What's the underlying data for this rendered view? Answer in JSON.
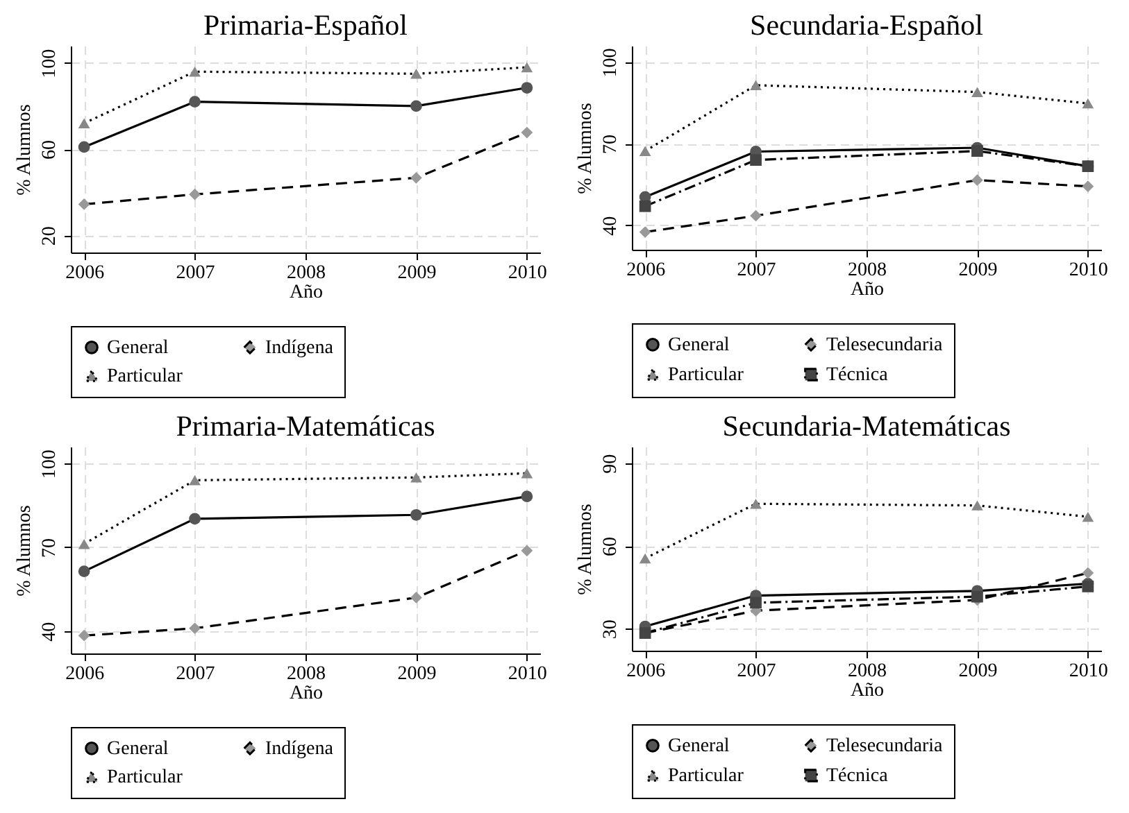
{
  "chart_data": [
    {
      "type": "line",
      "title": "Primaria-Español",
      "xlabel": "Año",
      "ylabel": "% Alumnos",
      "x": [
        2006,
        2007,
        2009,
        2010
      ],
      "xlim": [
        2005.88,
        2010.12
      ],
      "xticks": [
        2006,
        2007,
        2008,
        2009,
        2010
      ],
      "ylim": [
        12,
        108
      ],
      "yticks": [
        20,
        60,
        100
      ],
      "grid": true,
      "legend": "bottom",
      "series": [
        {
          "name": "General",
          "color": "#555555",
          "marker": "circle",
          "line_style": "solid",
          "values": [
            61,
            82,
            80,
            88.5
          ]
        },
        {
          "name": "Indígena",
          "color": "#999999",
          "marker": "diamond",
          "line_style": "dashed",
          "values": [
            34.4,
            39,
            46.7,
            67.7
          ]
        },
        {
          "name": "Particular",
          "color": "#888888",
          "marker": "triangle",
          "line_style": "dotted",
          "values": [
            72,
            96,
            95,
            98
          ]
        }
      ]
    },
    {
      "type": "line",
      "title": "Secundaria-Español",
      "xlabel": "Año",
      "ylabel": "% Alumnos",
      "x": [
        2006,
        2007,
        2009,
        2010
      ],
      "xlim": [
        2005.88,
        2010.12
      ],
      "xticks": [
        2006,
        2007,
        2008,
        2009,
        2010
      ],
      "ylim": [
        31,
        106
      ],
      "yticks": [
        40,
        70,
        100
      ],
      "grid": true,
      "legend": "bottom",
      "series": [
        {
          "name": "General",
          "color": "#555555",
          "marker": "circle",
          "line_style": "solid",
          "values": [
            50.4,
            67.1,
            68.5,
            61.7
          ]
        },
        {
          "name": "Telesecundaria",
          "color": "#999999",
          "marker": "diamond",
          "line_style": "dashed",
          "values": [
            37.5,
            43.5,
            56.6,
            54.3
          ]
        },
        {
          "name": "Particular",
          "color": "#888888",
          "marker": "triangle",
          "line_style": "dotted",
          "values": [
            67.3,
            91.5,
            89,
            84.8
          ]
        },
        {
          "name": "Técnica",
          "color": "#444444",
          "marker": "square",
          "line_style": "dashdot",
          "values": [
            47,
            64,
            67.3,
            61.7
          ]
        }
      ]
    },
    {
      "type": "line",
      "title": "Primaria-Matemáticas",
      "xlabel": "Año",
      "ylabel": "% Alumnos",
      "x": [
        2006,
        2007,
        2009,
        2010
      ],
      "xlim": [
        2005.88,
        2010.12
      ],
      "xticks": [
        2006,
        2007,
        2008,
        2009,
        2010
      ],
      "ylim": [
        32,
        106
      ],
      "yticks": [
        40,
        70,
        100
      ],
      "grid": true,
      "legend": "bottom",
      "series": [
        {
          "name": "General",
          "color": "#555555",
          "marker": "circle",
          "line_style": "solid",
          "values": [
            61.4,
            80.2,
            81.6,
            88.2
          ]
        },
        {
          "name": "Indígena",
          "color": "#999999",
          "marker": "diamond",
          "line_style": "dashed",
          "values": [
            38.4,
            41,
            52,
            68.8
          ]
        },
        {
          "name": "Particular",
          "color": "#888888",
          "marker": "triangle",
          "line_style": "dotted",
          "values": [
            71.2,
            94,
            95,
            96.5
          ]
        }
      ]
    },
    {
      "type": "line",
      "title": "Secundaria-Matemáticas",
      "xlabel": "Año",
      "ylabel": "% Alumnos",
      "x": [
        2006,
        2007,
        2009,
        2010
      ],
      "xlim": [
        2005.88,
        2010.12
      ],
      "xticks": [
        2006,
        2007,
        2008,
        2009,
        2010
      ],
      "ylim": [
        22,
        96
      ],
      "yticks": [
        30,
        60,
        90
      ],
      "grid": true,
      "legend": "bottom",
      "series": [
        {
          "name": "General",
          "color": "#555555",
          "marker": "circle",
          "line_style": "solid",
          "values": [
            30.8,
            42,
            43.7,
            46.3
          ]
        },
        {
          "name": "Telesecundaria",
          "color": "#999999",
          "marker": "diamond",
          "line_style": "dashed",
          "values": [
            28.4,
            36.5,
            40.4,
            50.2
          ]
        },
        {
          "name": "Particular",
          "color": "#888888",
          "marker": "triangle",
          "line_style": "dotted",
          "values": [
            55.5,
            75.3,
            74.7,
            70.6
          ]
        },
        {
          "name": "Técnica",
          "color": "#444444",
          "marker": "square",
          "line_style": "dashdot",
          "values": [
            28.4,
            39.4,
            41.6,
            45.3
          ]
        }
      ]
    }
  ]
}
